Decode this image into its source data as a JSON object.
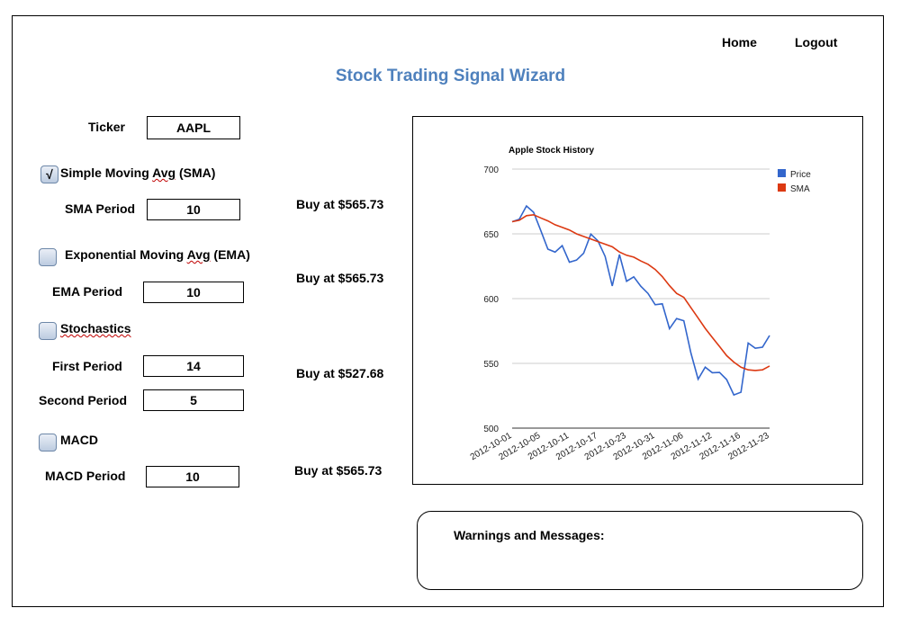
{
  "nav": {
    "home": "Home",
    "logout": "Logout"
  },
  "title": "Stock Trading Signal Wizard",
  "form": {
    "ticker": {
      "label": "Ticker",
      "value": "AAPL"
    },
    "sma": {
      "checked": true,
      "check_mark": "√",
      "label_pre": "Simple Moving ",
      "label_sq": "Avg",
      "label_post": " (SMA)",
      "period_label": "SMA Period",
      "period": "10",
      "signal": "Buy at  $565.73"
    },
    "ema": {
      "checked": false,
      "label_pre": "Exponential  Moving ",
      "label_sq": "Avg",
      "label_post": " (EMA)",
      "period_label": "EMA Period",
      "period": "10",
      "signal": "Buy at  $565.73"
    },
    "stoch": {
      "checked": false,
      "label": "Stochastics",
      "first_label": "First Period",
      "first": "14",
      "second_label": "Second Period",
      "second": "5",
      "signal": "Buy at  $527.68"
    },
    "macd": {
      "checked": false,
      "label": "MACD",
      "period_label": "MACD Period",
      "period": "10",
      "signal": "Buy at  $565.73"
    }
  },
  "messages": {
    "title": "Warnings and Messages:"
  },
  "colors": {
    "title": "#4f81bd",
    "price": "#3366cc",
    "sma": "#dc3912",
    "grid": "#cccccc"
  },
  "chart_data": {
    "type": "line",
    "title": "Apple Stock History",
    "ylim": [
      500,
      700
    ],
    "yticks": [
      500,
      550,
      600,
      650,
      700
    ],
    "xtick_labels": [
      "2012-10-01",
      "2012-10-05",
      "2012-10-11",
      "2012-10-17",
      "2012-10-23",
      "2012-10-31",
      "2012-11-06",
      "2012-11-12",
      "2012-11-16",
      "2012-11-23"
    ],
    "legend_position": "top-right",
    "grid": true,
    "series": [
      {
        "name": "Price",
        "color": "#3366cc",
        "values": [
          659.4,
          661.3,
          671.5,
          666.7,
          652.6,
          638.2,
          635.9,
          640.9,
          628.1,
          629.7,
          635.0,
          649.8,
          644.6,
          632.6,
          609.8,
          634.0,
          613.4,
          616.8,
          609.5,
          604.0,
          595.3,
          596.0,
          576.8,
          584.6,
          582.9,
          558.0,
          537.8,
          547.1,
          542.8,
          543.0,
          537.5,
          525.6,
          527.7,
          565.7,
          561.7,
          562.5,
          571.5
        ]
      },
      {
        "name": "SMA",
        "color": "#dc3912",
        "values": [
          659.4,
          660.5,
          664.0,
          664.7,
          662.3,
          660.0,
          657.0,
          655.0,
          653.0,
          650.0,
          648.0,
          646.0,
          644.0,
          642.0,
          640.0,
          636.0,
          633.5,
          632.0,
          629.0,
          626.5,
          622.5,
          617.0,
          610.0,
          604.0,
          601.0,
          593.0,
          585.0,
          577.0,
          570.0,
          563.0,
          556.0,
          551.0,
          547.0,
          545.0,
          544.5,
          545.0,
          548.0
        ]
      }
    ]
  }
}
